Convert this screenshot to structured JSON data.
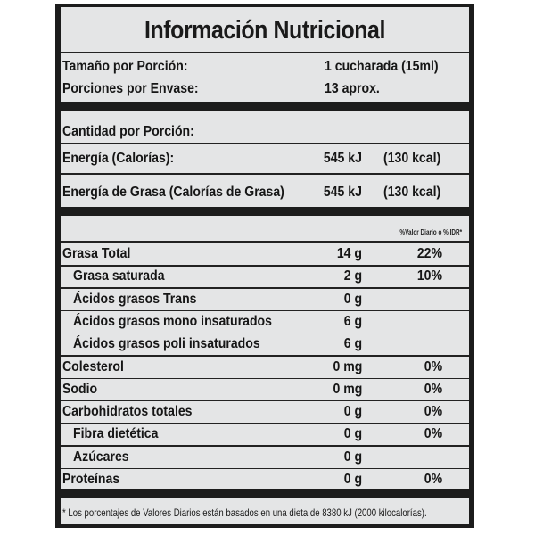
{
  "title": "Información Nutricional",
  "serving": [
    {
      "label": "Tamaño por Porción:",
      "value": "1 cucharada (15ml)"
    },
    {
      "label": "Porciones por Envase:",
      "value": "13 aprox."
    }
  ],
  "amount_per_serving": "Cantidad por Porción:",
  "energy": [
    {
      "label": "Energía (Calorías):",
      "kj": "545 kJ",
      "kcal": "(130 kcal)"
    },
    {
      "label": "Energía de Grasa (Calorías de Grasa)",
      "kj": "545 kJ",
      "kcal": "(130 kcal)"
    }
  ],
  "daily_value_header": "%Valor Diario o % IDR*",
  "nutrients": [
    {
      "label": "Grasa Total",
      "amount": "14 g",
      "dv": "22%",
      "indent": false
    },
    {
      "label": "Grasa saturada",
      "amount": "2 g",
      "dv": "10%",
      "indent": true
    },
    {
      "label": "Ácidos grasos Trans",
      "amount": "0 g",
      "dv": "",
      "indent": true
    },
    {
      "label": "Ácidos grasos mono insaturados",
      "amount": "6 g",
      "dv": "",
      "indent": true
    },
    {
      "label": "Ácidos grasos poli insaturados",
      "amount": "6 g",
      "dv": "",
      "indent": true
    },
    {
      "label": "Colesterol",
      "amount": "0 mg",
      "dv": "0%",
      "indent": false
    },
    {
      "label": "Sodio",
      "amount": "0 mg",
      "dv": "0%",
      "indent": false
    },
    {
      "label": "Carbohidratos totales",
      "amount": "0 g",
      "dv": "0%",
      "indent": false
    },
    {
      "label": "Fibra dietética",
      "amount": "0 g",
      "dv": "0%",
      "indent": true
    },
    {
      "label": "Azúcares",
      "amount": "0 g",
      "dv": "",
      "indent": true
    },
    {
      "label": "Proteínas",
      "amount": "0 g",
      "dv": "0%",
      "indent": false
    }
  ],
  "footnote": "* Los porcentajes de Valores Diarios están basados en una dieta de 8380 kJ (2000 kilocalorías)."
}
